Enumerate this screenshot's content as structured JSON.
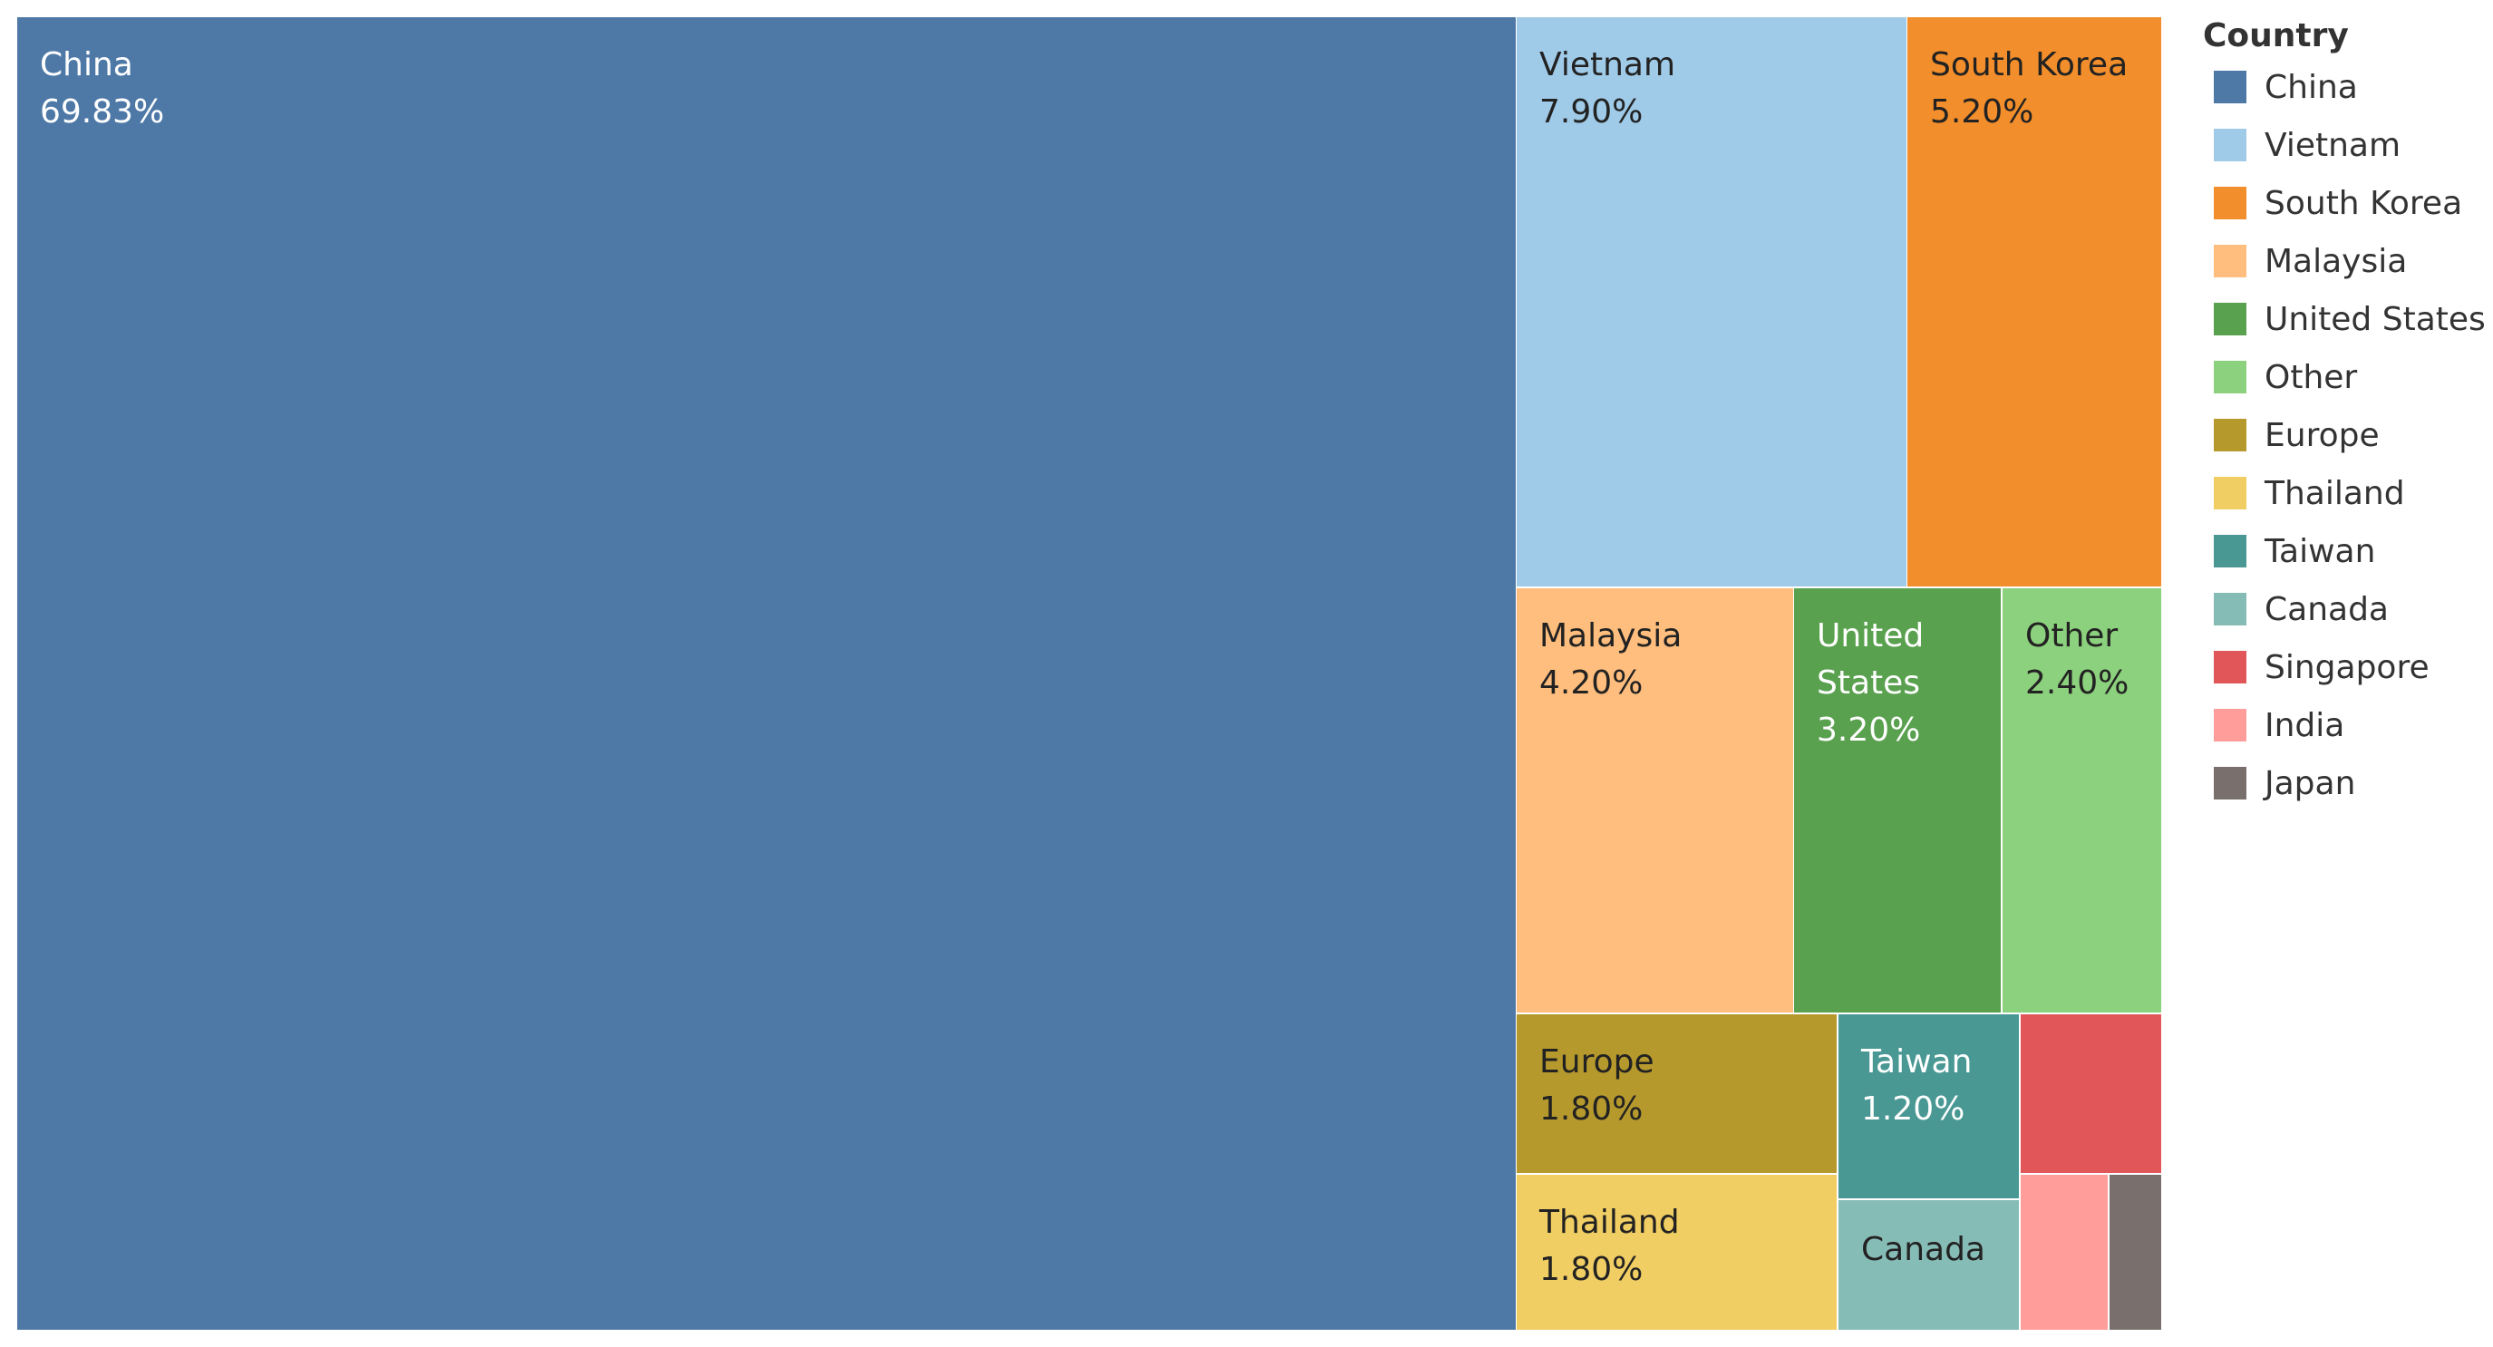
{
  "chart_data": {
    "type": "treemap",
    "legend": {
      "title": "Country",
      "position": "right"
    },
    "items": [
      {
        "name": "China",
        "value": 69.83,
        "value_label": "69.83%",
        "color": "#4E79A7",
        "text_color": "#ffffff",
        "label_lines": [
          "China"
        ]
      },
      {
        "name": "Vietnam",
        "value": 7.9,
        "value_label": "7.90%",
        "color": "#A0CBE8",
        "text_color": "#222222",
        "label_lines": [
          "Vietnam"
        ]
      },
      {
        "name": "South Korea",
        "value": 5.2,
        "value_label": "5.20%",
        "color": "#F28E2B",
        "text_color": "#222222",
        "label_lines": [
          "South Korea"
        ]
      },
      {
        "name": "Malaysia",
        "value": 4.2,
        "value_label": "4.20%",
        "color": "#FFBE7D",
        "text_color": "#222222",
        "label_lines": [
          "Malaysia"
        ]
      },
      {
        "name": "United States",
        "value": 3.2,
        "value_label": "3.20%",
        "color": "#59A14F",
        "text_color": "#ffffff",
        "label_lines": [
          "United",
          "States"
        ]
      },
      {
        "name": "Other",
        "value": 2.4,
        "value_label": "2.40%",
        "color": "#8CD17D",
        "text_color": "#222222",
        "label_lines": [
          "Other"
        ]
      },
      {
        "name": "Europe",
        "value": 1.8,
        "value_label": "1.80%",
        "color": "#B6992D",
        "text_color": "#222222",
        "label_lines": [
          "Europe"
        ]
      },
      {
        "name": "Thailand",
        "value": 1.8,
        "value_label": "1.80%",
        "color": "#F1CE63",
        "text_color": "#222222",
        "label_lines": [
          "Thailand"
        ]
      },
      {
        "name": "Taiwan",
        "value": 1.2,
        "value_label": "1.20%",
        "color": "#499894",
        "text_color": "#ffffff",
        "label_lines": [
          "Taiwan"
        ]
      },
      {
        "name": "Canada",
        "value": 0.9,
        "value_label": "",
        "color": "#86BCB6",
        "text_color": "#222222",
        "label_lines": [
          "Canada"
        ]
      },
      {
        "name": "Singapore",
        "value": 0.8,
        "value_label": "",
        "color": "#E15759",
        "text_color": "#222222",
        "label_lines": []
      },
      {
        "name": "India",
        "value": 0.45,
        "value_label": "",
        "color": "#FF9D9A",
        "text_color": "#222222",
        "label_lines": []
      },
      {
        "name": "Japan",
        "value": 0.25,
        "value_label": "",
        "color": "#79706E",
        "text_color": "#222222",
        "label_lines": []
      }
    ]
  }
}
